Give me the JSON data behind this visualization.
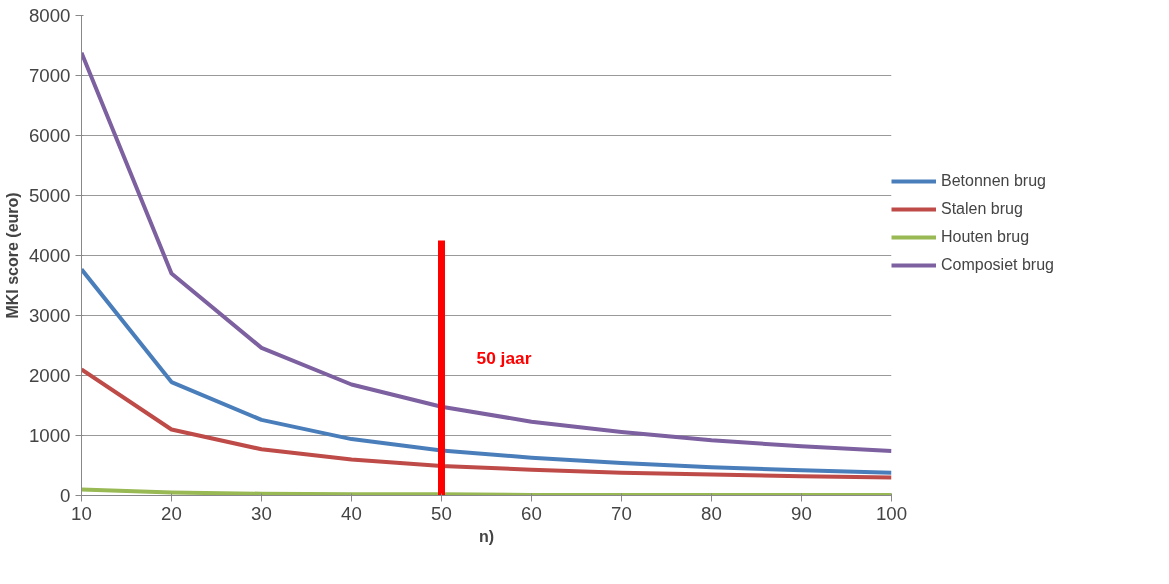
{
  "chart_data": {
    "type": "line",
    "ylabel": "MKI score (euro)",
    "xlabel": "n)",
    "x": [
      10,
      20,
      30,
      40,
      50,
      60,
      70,
      80,
      90,
      100
    ],
    "xlim": [
      10,
      100
    ],
    "xticks": [
      10,
      20,
      30,
      40,
      50,
      60,
      70,
      80,
      90,
      100
    ],
    "ylim": [
      0,
      8000
    ],
    "yticks": [
      0,
      1000,
      2000,
      3000,
      4000,
      5000,
      6000,
      7000,
      8000
    ],
    "grid": "y",
    "legend": "right",
    "marker": "none",
    "line_style": "solid",
    "series": [
      {
        "name": "Betonnen brug",
        "color": "#4a7ebb",
        "values": [
          3770,
          1890,
          1260,
          940,
          750,
          630,
          540,
          470,
          420,
          380
        ]
      },
      {
        "name": "Stalen brug",
        "color": "#be4b48",
        "values": [
          2100,
          1100,
          770,
          600,
          490,
          430,
          380,
          350,
          320,
          300
        ]
      },
      {
        "name": "Houten brug",
        "color": "#98b954",
        "values": [
          100,
          50,
          30,
          20,
          20,
          10,
          10,
          10,
          10,
          10
        ]
      },
      {
        "name": "Composiet brug",
        "color": "#7d60a0",
        "values": [
          7380,
          3700,
          2460,
          1850,
          1480,
          1230,
          1060,
          920,
          820,
          740
        ]
      },
      {
        "color": "#ff0000",
        "x": [
          50,
          50
        ],
        "values": [
          0,
          4250
        ]
      }
    ],
    "annotations": [
      "50 jaar"
    ]
  }
}
